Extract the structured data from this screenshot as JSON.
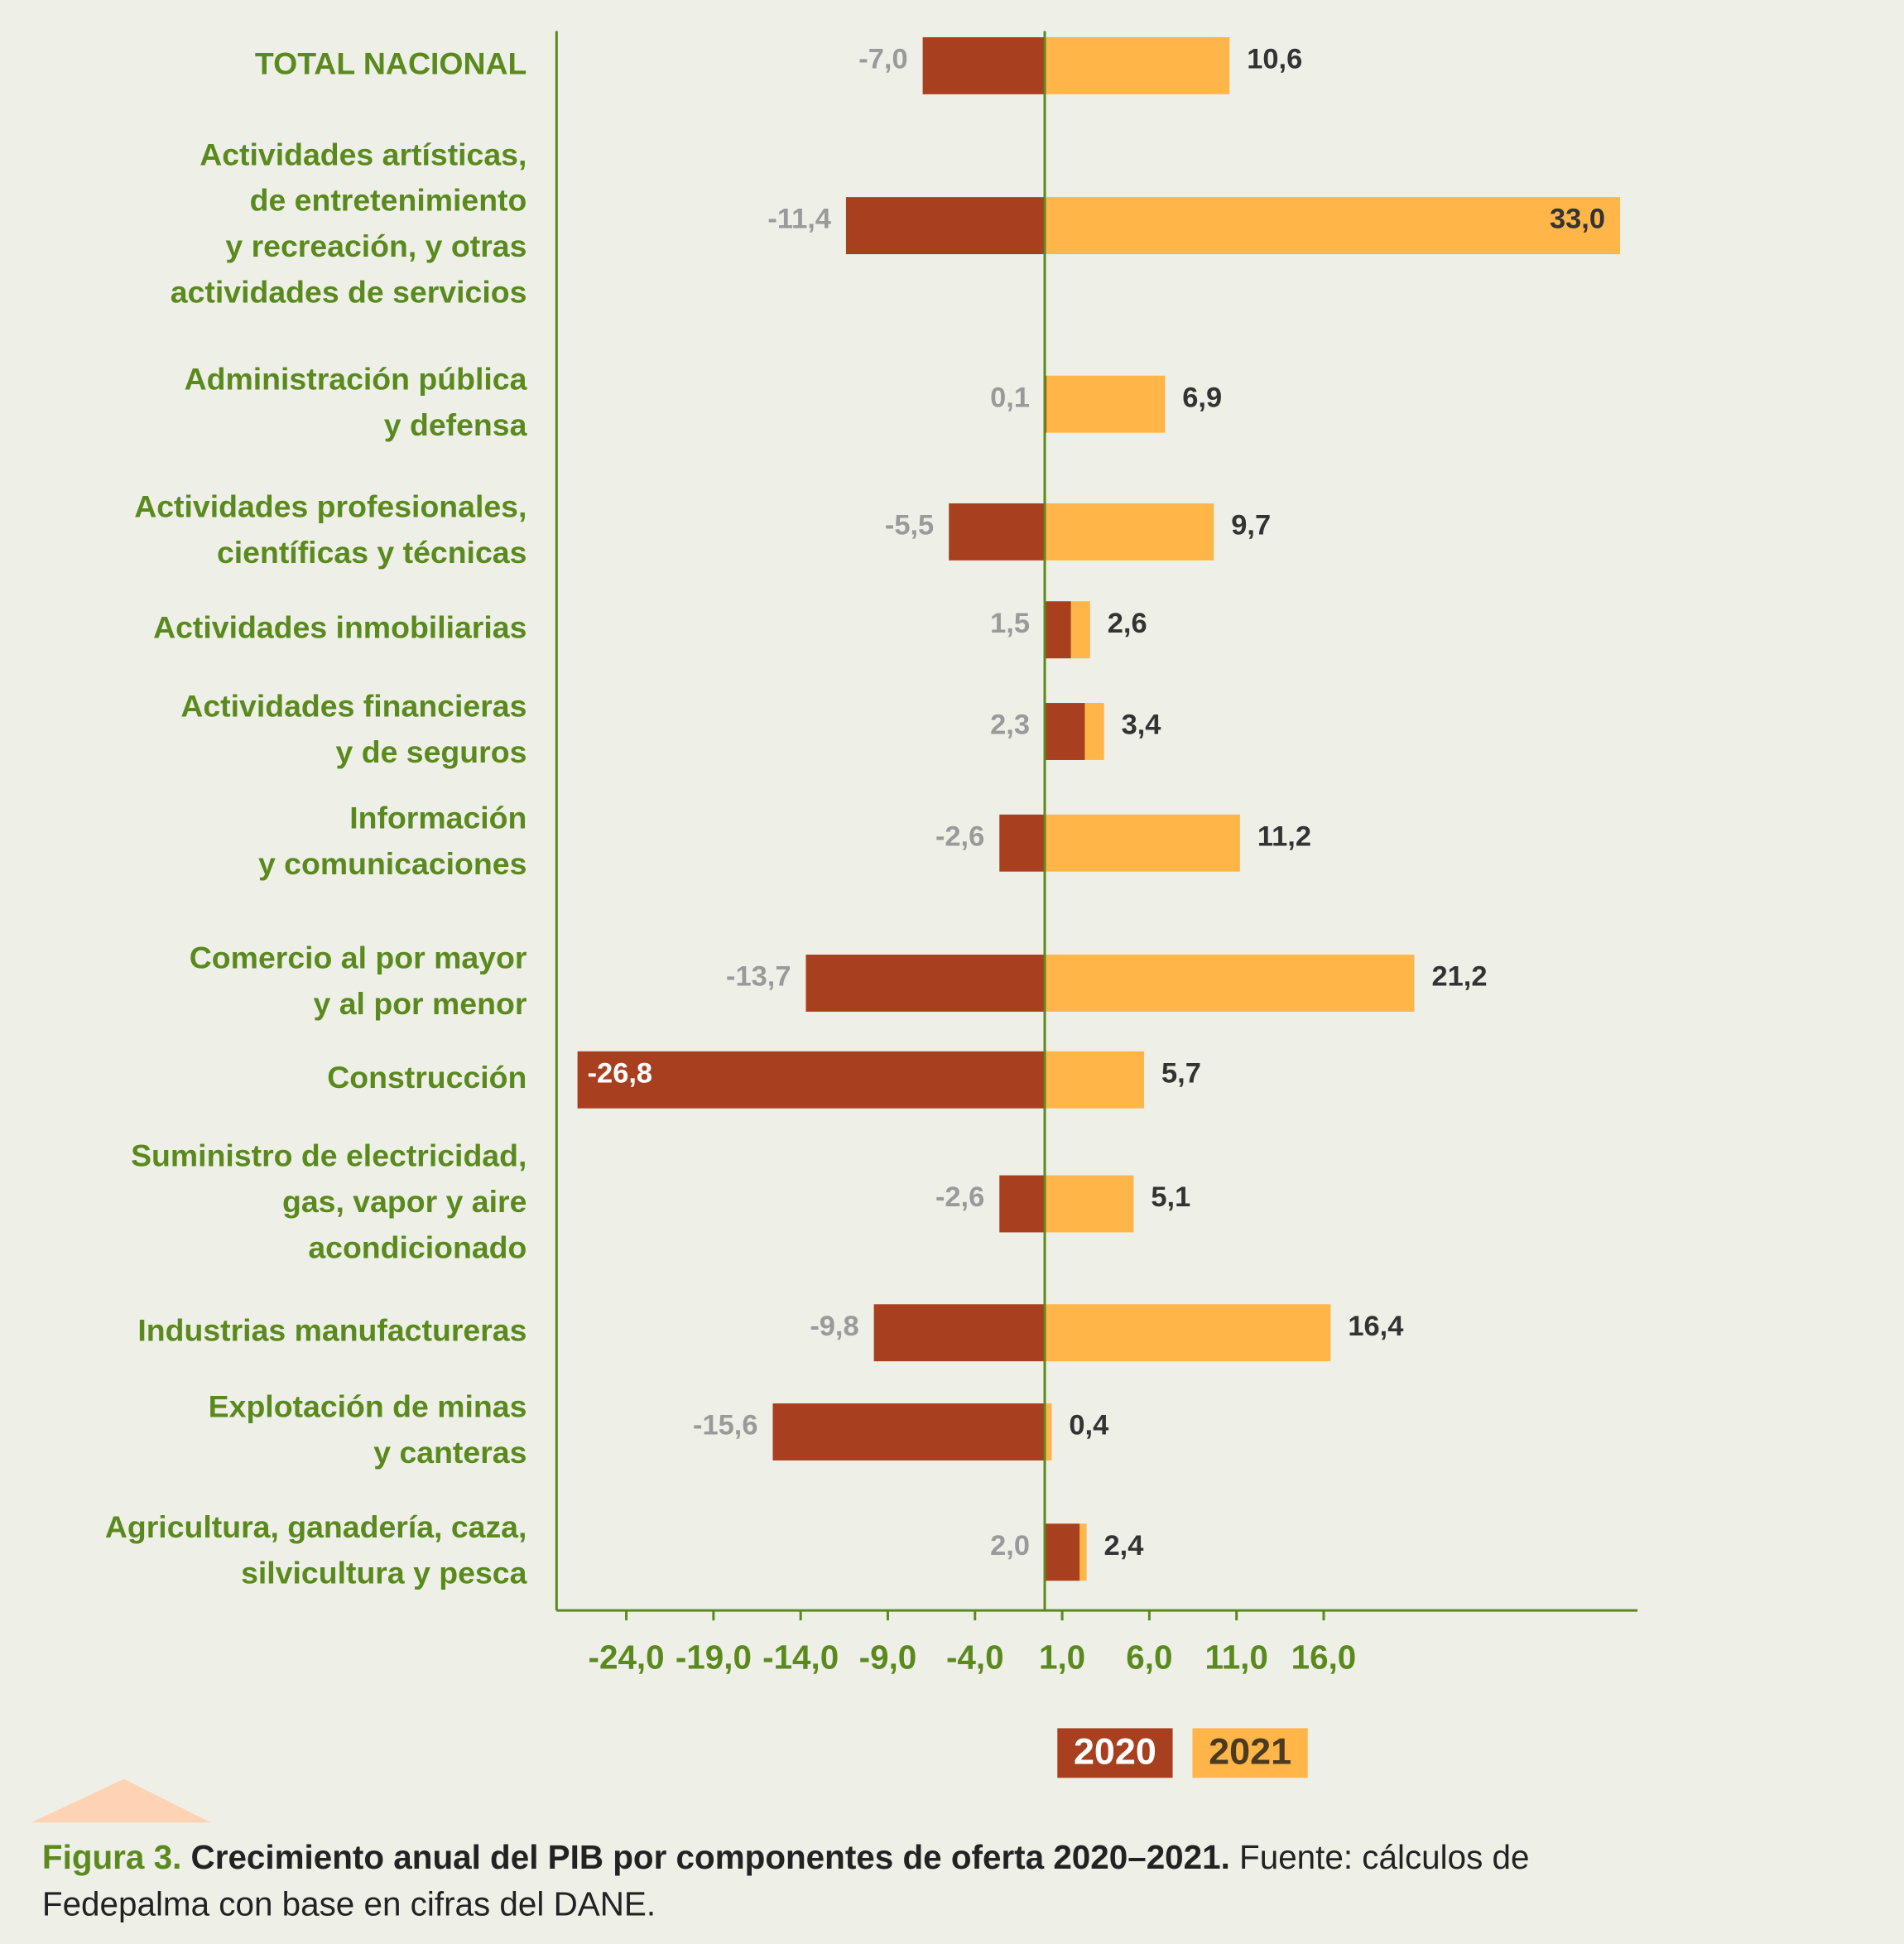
{
  "chart_data": {
    "type": "bar",
    "orientation": "horizontal",
    "categories": [
      [
        "TOTAL NACIONAL"
      ],
      [
        "Actividades artísticas,",
        "de entretenimiento",
        "y recreación, y otras",
        "actividades de servicios"
      ],
      [
        "Administración pública",
        "y defensa"
      ],
      [
        "Actividades profesionales,",
        "científicas y técnicas"
      ],
      [
        "Actividades inmobiliarias"
      ],
      [
        "Actividades financieras",
        "y de seguros"
      ],
      [
        "Información",
        "y comunicaciones"
      ],
      [
        "Comercio al por mayor",
        "y al por menor"
      ],
      [
        "Construcción"
      ],
      [
        "Suministro de electricidad,",
        "gas, vapor y aire",
        "acondicionado"
      ],
      [
        "Industrias manufactureras"
      ],
      [
        "Explotación de minas",
        "y canteras"
      ],
      [
        "Agricultura, ganadería, caza,",
        "silvicultura y pesca"
      ]
    ],
    "series": [
      {
        "name": "2020",
        "color": "#a8401f",
        "values": [
          -7.0,
          -11.4,
          0.1,
          -5.5,
          1.5,
          2.3,
          -2.6,
          -13.7,
          -26.8,
          -2.6,
          -9.8,
          -15.6,
          2.0
        ],
        "value_labels": [
          "-7,0",
          "-11,4",
          "0,1",
          "-5,5",
          "1,5",
          "2,3",
          "-2,6",
          "-13,7",
          "-26,8",
          "-2,6",
          "-9,8",
          "-15,6",
          "2,0"
        ]
      },
      {
        "name": "2021",
        "color": "#ffb548",
        "values": [
          10.6,
          33.0,
          6.9,
          9.7,
          2.6,
          3.4,
          11.2,
          21.2,
          5.7,
          5.1,
          16.4,
          0.4,
          2.4
        ],
        "value_labels": [
          "10,6",
          "33,0",
          "6,9",
          "9,7",
          "2,6",
          "3,4",
          "11,2",
          "21,2",
          "5,7",
          "5,1",
          "16,4",
          "0,4",
          "2,4"
        ]
      }
    ],
    "xlim": [
      -28,
      34
    ],
    "xticks": [
      {
        "value": -24,
        "label": "-24,0"
      },
      {
        "value": -19,
        "label": "-19,0"
      },
      {
        "value": -14,
        "label": "-14,0"
      },
      {
        "value": -9,
        "label": "-9,0"
      },
      {
        "value": -4,
        "label": "-4,0"
      },
      {
        "value": 1,
        "label": "1,0"
      },
      {
        "value": 6,
        "label": "6,0"
      },
      {
        "value": 11,
        "label": "11,0"
      },
      {
        "value": 16,
        "label": "16,0"
      }
    ],
    "caption": {
      "figure": "Figura 3.",
      "title": "Crecimiento anual del PIB por componentes de oferta 2020–2021.",
      "source": [
        "Fuente: cálculos de",
        "Fedepalma con base en cifras del DANE."
      ]
    }
  }
}
